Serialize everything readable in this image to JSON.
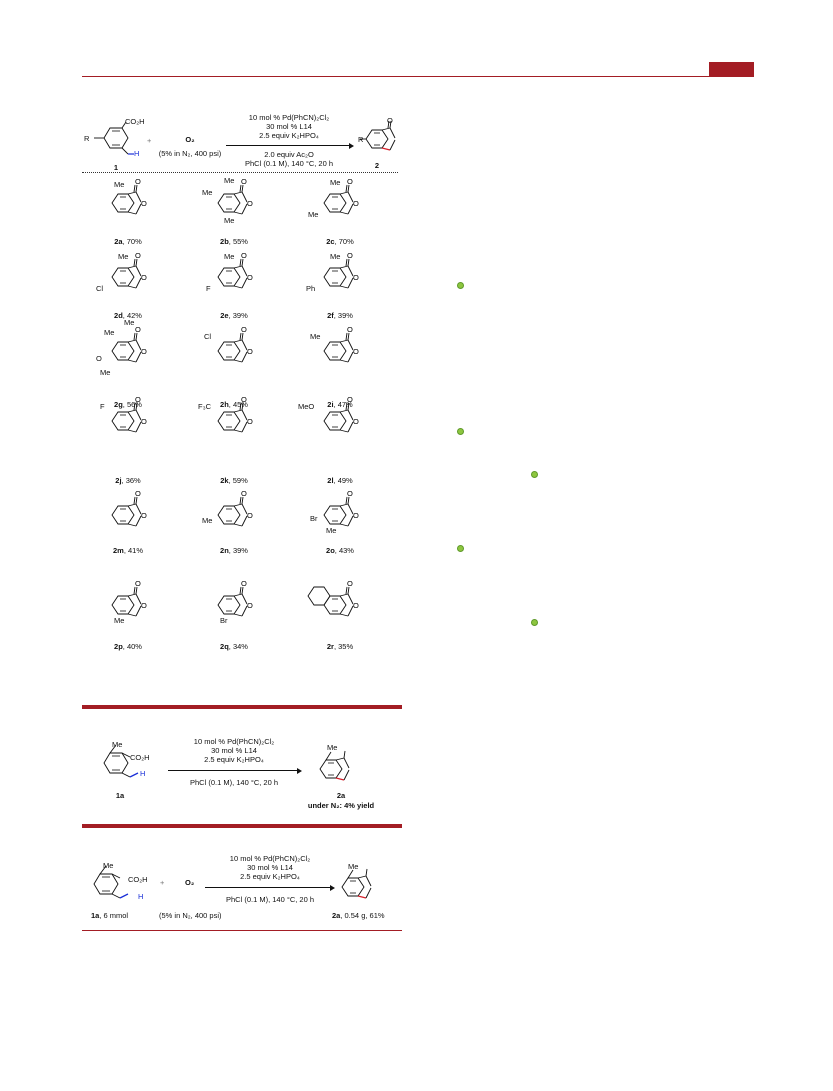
{
  "scheme1": {
    "reactant_label": "1",
    "reactant_co2h": "CO₂H",
    "reactant_r": "R",
    "reactant_h": "H",
    "plus": "+",
    "oxidant": "O₂",
    "oxidant_note": "(5% in N₂, 400 psi)",
    "cond_top": [
      "10 mol % Pd(PhCN)₂Cl₂",
      "30 mol % L14",
      "2.5 equiv K₂HPO₄"
    ],
    "cond_bottom": [
      "2.0 equiv Ac₂O",
      "PhCl (0.1 M), 140 °C, 20 h"
    ],
    "product_label": "2",
    "product_r": "R",
    "product_o": "O"
  },
  "products": [
    {
      "id": "2a",
      "yield": ", 70%",
      "subs": [
        "Me (C7)"
      ]
    },
    {
      "id": "2b",
      "yield": ", 55%",
      "subs": [
        "Me",
        "Me",
        "Me"
      ]
    },
    {
      "id": "2c",
      "yield": ", 70%",
      "subs": [
        "Me",
        "Me"
      ]
    },
    {
      "id": "2d",
      "yield": ", 42%",
      "subs": [
        "Me",
        "Cl"
      ]
    },
    {
      "id": "2e",
      "yield": ", 39%",
      "subs": [
        "Me",
        "F"
      ]
    },
    {
      "id": "2f",
      "yield": ", 39%",
      "subs": [
        "Me",
        "Ph"
      ]
    },
    {
      "id": "2g",
      "yield": ", 56%",
      "subs": [
        "Me",
        "Me",
        "O",
        "Me"
      ]
    },
    {
      "id": "2h",
      "yield": ", 45%",
      "subs": [
        "Cl"
      ]
    },
    {
      "id": "2i",
      "yield": ", 47%",
      "subs": [
        "Me"
      ]
    },
    {
      "id": "2j",
      "yield": ", 36%",
      "subs": [
        "F"
      ]
    },
    {
      "id": "2k",
      "yield": ", 59%",
      "subs": [
        "F₃C"
      ]
    },
    {
      "id": "2l",
      "yield": ", 49%",
      "subs": [
        "MeO"
      ]
    },
    {
      "id": "2m",
      "yield": ", 41%",
      "subs": []
    },
    {
      "id": "2n",
      "yield": ", 39%",
      "subs": [
        "Me"
      ]
    },
    {
      "id": "2o",
      "yield": ", 43%",
      "subs": [
        "Br",
        "Me"
      ]
    },
    {
      "id": "2p",
      "yield": ", 40%",
      "subs": [
        "Me"
      ]
    },
    {
      "id": "2q",
      "yield": ", 34%",
      "subs": [
        "Br"
      ]
    },
    {
      "id": "2r",
      "yield": ", 35%",
      "subs": []
    }
  ],
  "scheme2": {
    "reactant_label": "1a",
    "me": "Me",
    "co2h": "CO₂H",
    "h": "H",
    "cond_top": [
      "10 mol % Pd(PhCN)₂Cl₂",
      "30 mol % L14",
      "2.5 equiv K₂HPO₄"
    ],
    "cond_bottom": "PhCl (0.1 M), 140 °C, 20 h",
    "product_label": "2a",
    "product_note": "under N₂: 4% yield"
  },
  "scheme3": {
    "reactant_label": "1a",
    "reactant_amount": ", 6 mmol",
    "me": "Me",
    "co2h": "CO₂H",
    "h": "H",
    "plus": "+",
    "oxidant": "O₂",
    "oxidant_note": "(5% in N₂, 400 psi)",
    "cond_top": [
      "10 mol % Pd(PhCN)₂Cl₂",
      "30 mol % L14",
      "2.5 equiv K₂HPO₄"
    ],
    "cond_bottom": "PhCl (0.1 M), 140 °C, 20 h",
    "product_label": "2a",
    "product_amount": ", 0.54 g, 61%"
  },
  "colors": {
    "accent": "#a31d24",
    "h_blue": "#1a2fd8",
    "bond_red": "#d8202a",
    "marker_green": "#8dc63f"
  }
}
